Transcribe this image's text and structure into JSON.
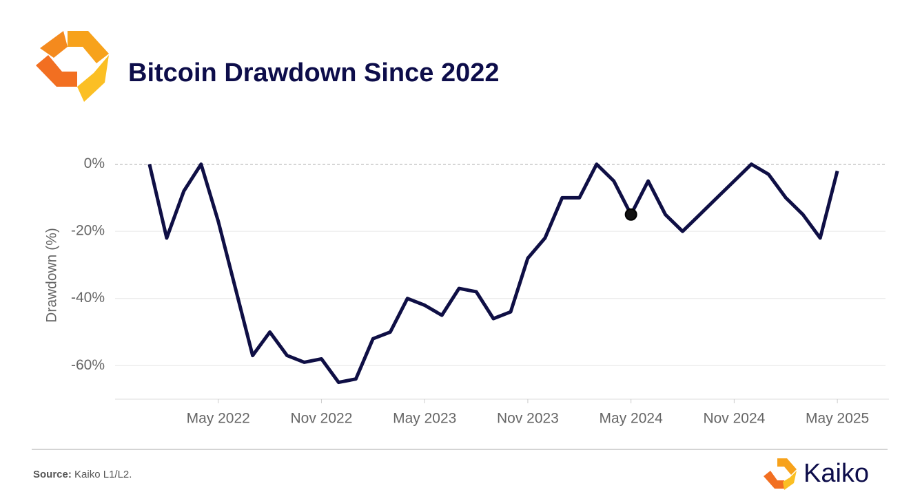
{
  "chart_data": {
    "type": "line",
    "title": "Bitcoin Drawdown Since 2022",
    "y_label": "Drawdown (%)",
    "source_label": "Source:",
    "source_text": "Kaiko L1/L2.",
    "brand": "Kaiko",
    "x": [
      "2022-01",
      "2022-02",
      "2022-03",
      "2022-04",
      "2022-05",
      "2022-06",
      "2022-07",
      "2022-08",
      "2022-09",
      "2022-10",
      "2022-11",
      "2022-12",
      "2023-01",
      "2023-02",
      "2023-03",
      "2023-04",
      "2023-05",
      "2023-06",
      "2023-07",
      "2023-08",
      "2023-09",
      "2023-10",
      "2023-11",
      "2023-12",
      "2024-01",
      "2024-02",
      "2024-03",
      "2024-04",
      "2024-05",
      "2024-06",
      "2024-07",
      "2024-08",
      "2024-09",
      "2024-10",
      "2024-11",
      "2024-12",
      "2025-01",
      "2025-02",
      "2025-03",
      "2025-04",
      "2025-05"
    ],
    "series": [
      {
        "name": "Drawdown",
        "color": "#0f0f45",
        "values": [
          0,
          -22,
          -8,
          0,
          -17,
          -37,
          -57,
          -50,
          -57,
          -59,
          -58,
          -65,
          -64,
          -52,
          -50,
          -40,
          -42,
          -45,
          -37,
          -38,
          -46,
          -44,
          -28,
          -22,
          -10,
          -10,
          0,
          -5,
          -15,
          -5,
          -15,
          -20,
          -15,
          -10,
          -5,
          0,
          -3,
          -10,
          -15,
          -22,
          -2
        ]
      }
    ],
    "marker": {
      "x": "2024-05",
      "value": -15,
      "color": "#111111"
    },
    "xlim": [
      "2021-11",
      "2025-08"
    ],
    "xticks": [
      {
        "value": "2022-05",
        "label": "May 2022"
      },
      {
        "value": "2022-11",
        "label": "Nov 2022"
      },
      {
        "value": "2023-05",
        "label": "May 2023"
      },
      {
        "value": "2023-11",
        "label": "Nov 2023"
      },
      {
        "value": "2024-05",
        "label": "May 2024"
      },
      {
        "value": "2024-11",
        "label": "Nov 2024"
      },
      {
        "value": "2025-05",
        "label": "May 2025"
      }
    ],
    "ylim": [
      -70,
      3
    ],
    "yticks": [
      {
        "value": 0,
        "label": "0%"
      },
      {
        "value": -20,
        "label": "-20%"
      },
      {
        "value": -40,
        "label": "-40%"
      },
      {
        "value": -60,
        "label": "-60%"
      }
    ],
    "grid": true
  }
}
